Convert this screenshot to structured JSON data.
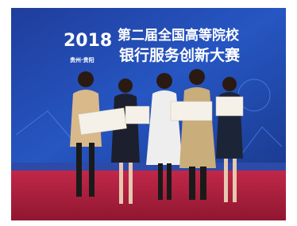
{
  "banner": {
    "year": "2018",
    "title_line1": "第二届全国高等院校",
    "title_line2": "银行服务创新大赛",
    "location": "贵州·贵阳"
  }
}
